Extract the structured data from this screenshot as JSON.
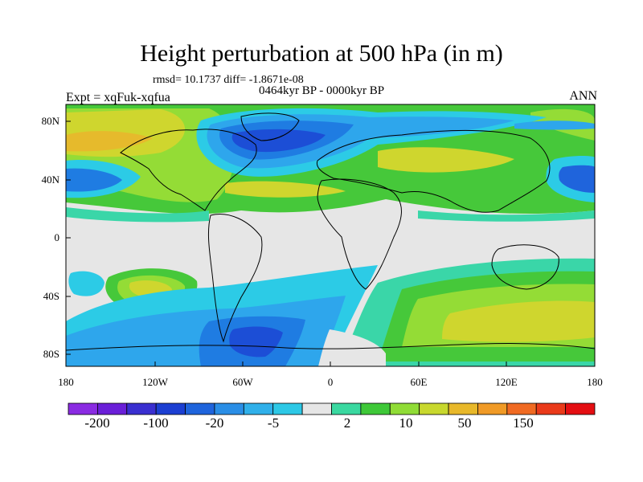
{
  "title": "Height perturbation at 500 hPa (in m)",
  "rmsd_text": "rmsd= 10.1737 diff= -1.8671e-08",
  "period_text": "0464kyr BP - 0000kyr BP",
  "expt_text": "Expt = xqFuk-xqfua",
  "season_text": "ANN",
  "lat_labels": [
    "80N",
    "40N",
    "0",
    "40S",
    "80S"
  ],
  "lon_labels": [
    "180",
    "120W",
    "60W",
    "0",
    "60E",
    "120E",
    "180"
  ],
  "colorbar": {
    "colors": [
      "#8a2be2",
      "#6a1fd8",
      "#3a2fd0",
      "#1c3fd2",
      "#1f64dc",
      "#2a8ee6",
      "#30b0ea",
      "#2dc8e6",
      "#e6e6e6",
      "#3ad8a0",
      "#3ec838",
      "#90dc36",
      "#c8d82e",
      "#e8b82a",
      "#f09a26",
      "#f06a22",
      "#ea3a1a",
      "#e40e12"
    ],
    "labels": [
      "-200",
      "-100",
      "-20",
      "-5",
      "2",
      "10",
      "50",
      "150"
    ]
  },
  "field_colors": {
    "gray": "#e6e6e6",
    "dblue": "#1c4ed6",
    "mblue": "#1f7ce2",
    "lblue": "#2ea6ec",
    "cyan": "#2ccbe6",
    "teal": "#3ad6a8",
    "green": "#46c83a",
    "lgreen": "#94dc36",
    "yellow": "#cfd62e",
    "orange": "#e6ba2c"
  }
}
